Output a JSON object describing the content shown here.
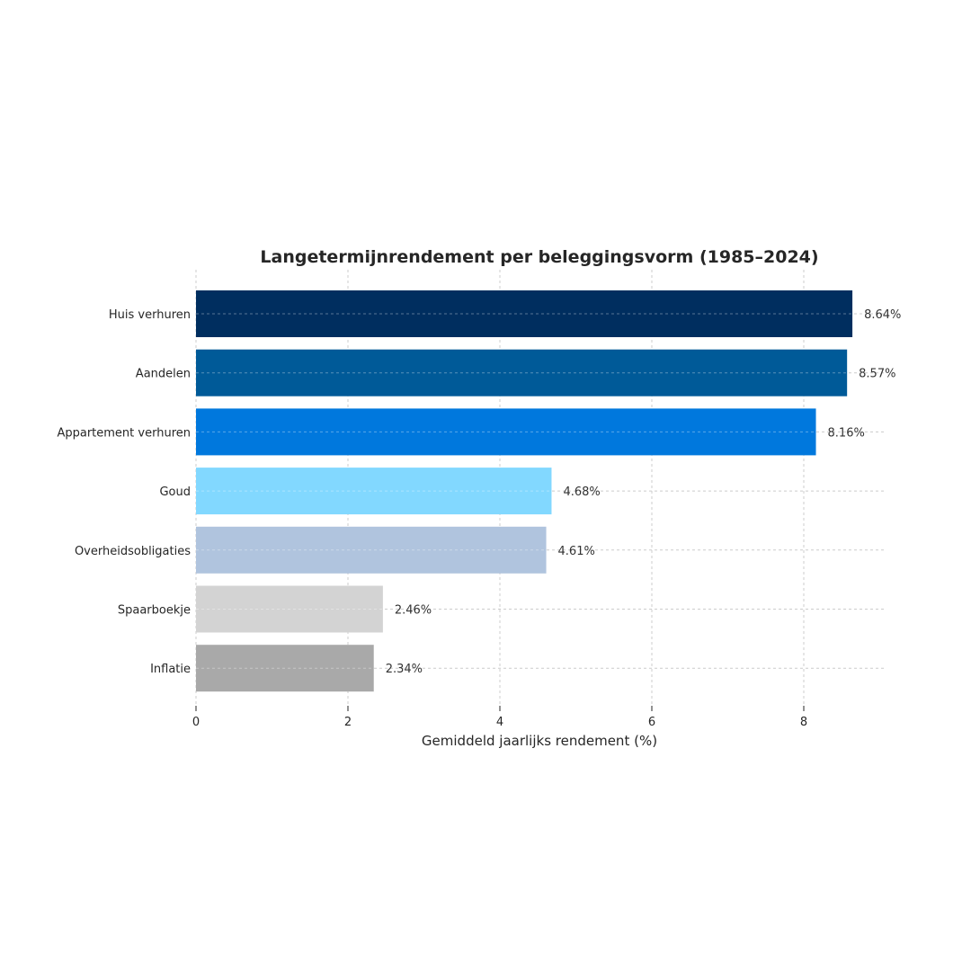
{
  "chart_data": {
    "type": "bar",
    "orientation": "horizontal",
    "title": "Langetermijnrendement per beleggingsvorm (1985–2024)",
    "xlabel": "Gemiddeld jaarlijks rendement (%)",
    "ylabel": "",
    "xlim": [
      0,
      9
    ],
    "xticks": [
      "0",
      "2",
      "4",
      "6",
      "8"
    ],
    "grid": true,
    "categories": [
      "Huis verhuren",
      "Aandelen",
      "Appartement verhuren",
      "Goud",
      "Overheidsobligaties",
      "Spaarboekje",
      "Inflatie"
    ],
    "values": [
      8.64,
      8.57,
      8.16,
      4.68,
      4.61,
      2.46,
      2.34
    ],
    "value_labels": [
      "8.64%",
      "8.57%",
      "8.16%",
      "4.68%",
      "4.61%",
      "2.46%",
      "2.34%"
    ],
    "colors": [
      "#002e5f",
      "#005a98",
      "#0078dd",
      "#82d8ff",
      "#b0c4de",
      "#d3d3d3",
      "#a9a9a9"
    ]
  }
}
